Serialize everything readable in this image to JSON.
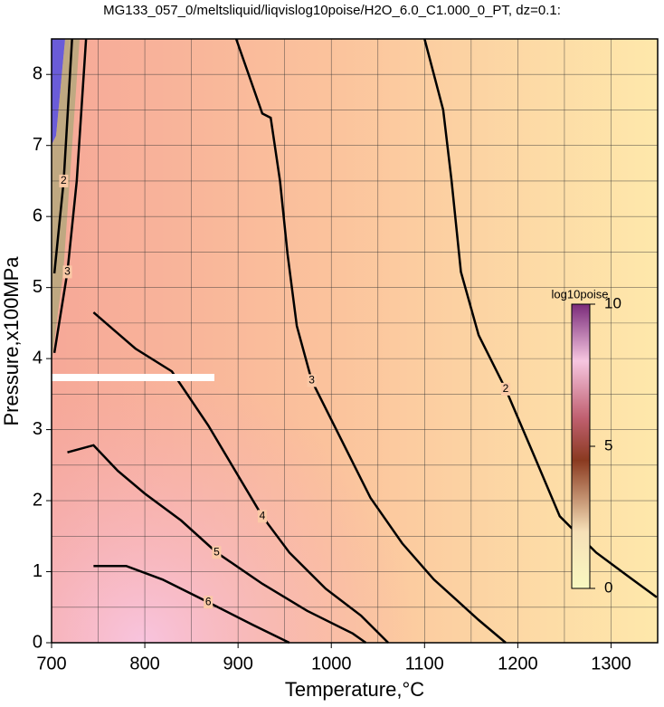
{
  "chart_data": {
    "type": "contour",
    "title": "MG133_057_0/meltsliquid/liqvislog10poise/H2O_6.0_C1.000_0_PT, dz=0.1:",
    "x_label": "Temperature,°C",
    "y_label": "Pressure,x100MPa",
    "xlim": [
      700,
      1350
    ],
    "ylim": [
      0,
      8.5
    ],
    "xticks": [
      700,
      800,
      900,
      1000,
      1100,
      1200,
      1300
    ],
    "yticks": [
      0,
      1,
      2,
      3,
      4,
      5,
      6,
      7,
      8
    ],
    "xminorticks": [
      750,
      850,
      950,
      1050,
      1150,
      1250
    ],
    "yminorticks": [
      0.5,
      1.5,
      2.5,
      3.5,
      4.5,
      5.5,
      6.5,
      7.5
    ],
    "grid": true,
    "series": [
      {
        "name": "2",
        "color": "#000000",
        "x": [
          1100,
          1120,
          1129,
          1139,
          1158,
          1187,
          1216,
          1245,
          1284,
          1323,
          1349
        ],
        "values": [
          8.5,
          7.5,
          6.5,
          5.22,
          4.33,
          3.57,
          2.68,
          1.78,
          1.27,
          0.89,
          0.64
        ]
      },
      {
        "name": "3",
        "color": "#000000",
        "x": [
          898,
          926,
          935,
          945,
          953,
          963,
          979,
          1008,
          1042,
          1076,
          1110,
          1158,
          1187
        ],
        "values": [
          8.5,
          7.45,
          7.39,
          6.5,
          5.48,
          4.46,
          3.69,
          2.93,
          2.04,
          1.4,
          0.89,
          0.32,
          0
        ]
      },
      {
        "name": "4",
        "color": "#000000",
        "x": [
          745,
          790,
          829,
          868,
          897,
          926,
          955,
          994,
          1032,
          1061
        ],
        "values": [
          4.65,
          4.14,
          3.82,
          3.06,
          2.42,
          1.78,
          1.27,
          0.76,
          0.38,
          0
        ]
      },
      {
        "name": "5",
        "color": "#000000",
        "x": [
          717,
          745,
          771,
          800,
          839,
          877,
          926,
          974,
          1023,
          1037
        ],
        "values": [
          2.68,
          2.78,
          2.42,
          2.1,
          1.72,
          1.27,
          0.83,
          0.45,
          0.13,
          0
        ]
      },
      {
        "name": "6",
        "color": "#000000",
        "x": [
          745,
          780,
          819,
          868,
          916,
          955
        ],
        "values": [
          1.08,
          1.08,
          0.89,
          0.57,
          0.25,
          0
        ]
      },
      {
        "name": "3",
        "color": "#000000",
        "x": [
          737,
          727,
          717,
          703
        ],
        "values": [
          8.5,
          6.5,
          5.22,
          4.08
        ]
      },
      {
        "name": "2",
        "color": "#000000",
        "x": [
          722,
          713,
          703
        ],
        "values": [
          8.5,
          6.5,
          5.2
        ]
      }
    ],
    "colorbar": {
      "label": "log10poise",
      "lim": [
        0,
        10
      ],
      "ticks": [
        0,
        5,
        10
      ]
    }
  }
}
